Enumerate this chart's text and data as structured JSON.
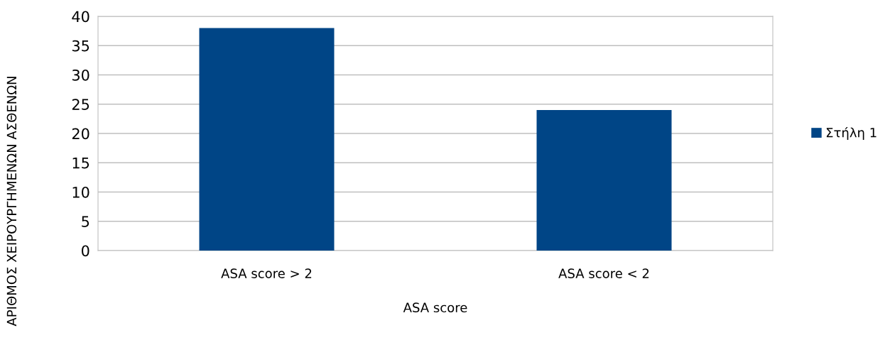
{
  "chart_data": {
    "type": "bar",
    "xlabel": "ASA score",
    "ylabel": "ΑΡΙΘΜΟΣ ΧΕΙΡΟΥΡΓΗΜΕΝΩΝ ΑΣΘΕΝΩΝ",
    "categories": [
      "ASA score > 2",
      "ASA score < 2"
    ],
    "series": [
      {
        "name": "Στήλη 1",
        "color": "#004586",
        "values": [
          38,
          24
        ]
      }
    ],
    "ylim": [
      0,
      40
    ],
    "yticks": [
      0,
      5,
      10,
      15,
      20,
      25,
      30,
      35,
      40
    ],
    "grid": "y",
    "legend": "right"
  }
}
